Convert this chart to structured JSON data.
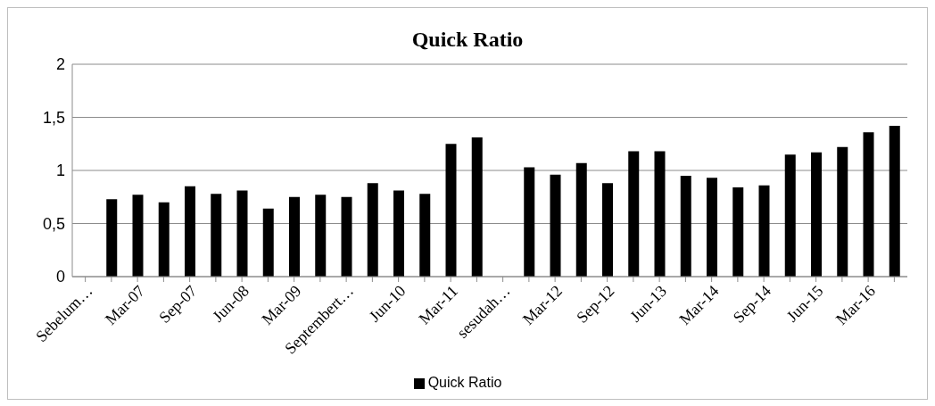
{
  "chart_data": {
    "type": "bar",
    "title": "Quick Ratio",
    "categories": [
      "Sebelum…",
      null,
      "Mar-07",
      null,
      "Sep-07",
      null,
      "Jun-08",
      null,
      "Mar-09",
      null,
      "Septembert…",
      null,
      "Jun-10",
      null,
      "Mar-11",
      null,
      "sesudah…",
      null,
      "Mar-12",
      null,
      "Sep-12",
      null,
      "Jun-13",
      null,
      "Mar-14",
      null,
      "Sep-14",
      null,
      "Jun-15",
      null,
      "Mar-16",
      null
    ],
    "series": [
      {
        "name": "Quick Ratio",
        "color": "#000000",
        "values": [
          null,
          0.73,
          0.77,
          0.7,
          0.85,
          0.78,
          0.81,
          0.64,
          0.75,
          0.77,
          0.75,
          0.88,
          0.81,
          0.78,
          1.25,
          1.31,
          null,
          1.03,
          0.96,
          1.07,
          0.88,
          1.18,
          1.18,
          0.95,
          0.93,
          0.84,
          0.86,
          1.15,
          1.17,
          1.22,
          1.36,
          1.42
        ]
      }
    ],
    "ylim": [
      0,
      2
    ],
    "yticks": [
      0,
      {
        "value": 0.5,
        "label": "0,5"
      },
      1,
      {
        "value": 1.5,
        "label": "1,5"
      },
      2
    ],
    "grid": "y",
    "legend": "bottom"
  }
}
